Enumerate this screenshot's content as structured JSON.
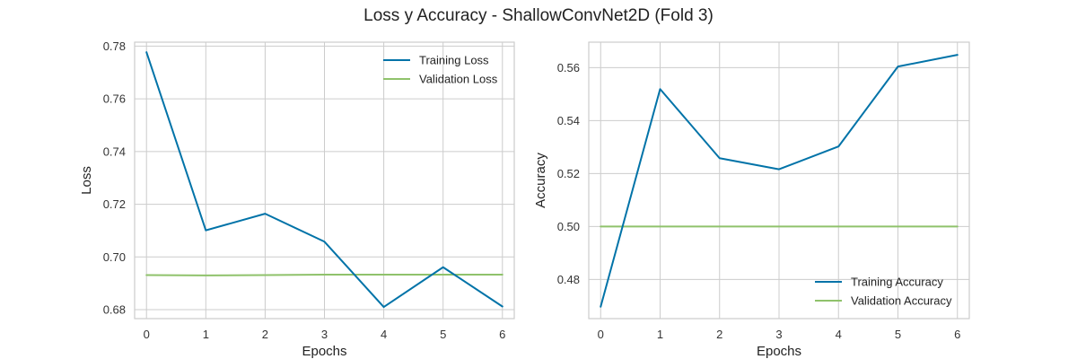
{
  "title": "Loss y Accuracy - ShallowConvNet2D (Fold 3)",
  "colors": {
    "training": "#0173a8",
    "validation": "#8fc26b",
    "grid": "#cccccc"
  },
  "chart_data": [
    {
      "type": "line",
      "xlabel": "Epochs",
      "ylabel": "Loss",
      "x": [
        0,
        1,
        2,
        3,
        4,
        5,
        6
      ],
      "xticks": [
        "0",
        "1",
        "2",
        "3",
        "4",
        "5",
        "6"
      ],
      "yticks": [
        "0.68",
        "0.70",
        "0.72",
        "0.74",
        "0.76",
        "0.78"
      ],
      "ytick_values": [
        0.68,
        0.7,
        0.72,
        0.74,
        0.76,
        0.78
      ],
      "xlim": [
        -0.2,
        6.2
      ],
      "ylim": [
        0.6766,
        0.7815
      ],
      "grid": true,
      "legend": "top-right",
      "series": [
        {
          "name": "Training Loss",
          "values": [
            0.7777,
            0.7101,
            0.7164,
            0.7058,
            0.681,
            0.6961,
            0.6812
          ]
        },
        {
          "name": "Validation Loss",
          "values": [
            0.6931,
            0.693,
            0.6931,
            0.6933,
            0.6933,
            0.6933,
            0.6933
          ]
        }
      ]
    },
    {
      "type": "line",
      "xlabel": "Epochs",
      "ylabel": "Accuracy",
      "x": [
        0,
        1,
        2,
        3,
        4,
        5,
        6
      ],
      "xticks": [
        "0",
        "1",
        "2",
        "3",
        "4",
        "5",
        "6"
      ],
      "yticks": [
        "0.48",
        "0.50",
        "0.52",
        "0.54",
        "0.56"
      ],
      "ytick_values": [
        0.48,
        0.5,
        0.52,
        0.54,
        0.56
      ],
      "xlim": [
        -0.2,
        6.2
      ],
      "ylim": [
        0.4652,
        0.5696
      ],
      "grid": true,
      "legend": "bottom-right",
      "series": [
        {
          "name": "Training Accuracy",
          "values": [
            0.4697,
            0.5519,
            0.5258,
            0.5216,
            0.5302,
            0.5604,
            0.5648
          ]
        },
        {
          "name": "Validation Accuracy",
          "values": [
            0.5,
            0.5,
            0.5,
            0.5,
            0.5,
            0.5,
            0.5
          ]
        }
      ]
    }
  ]
}
